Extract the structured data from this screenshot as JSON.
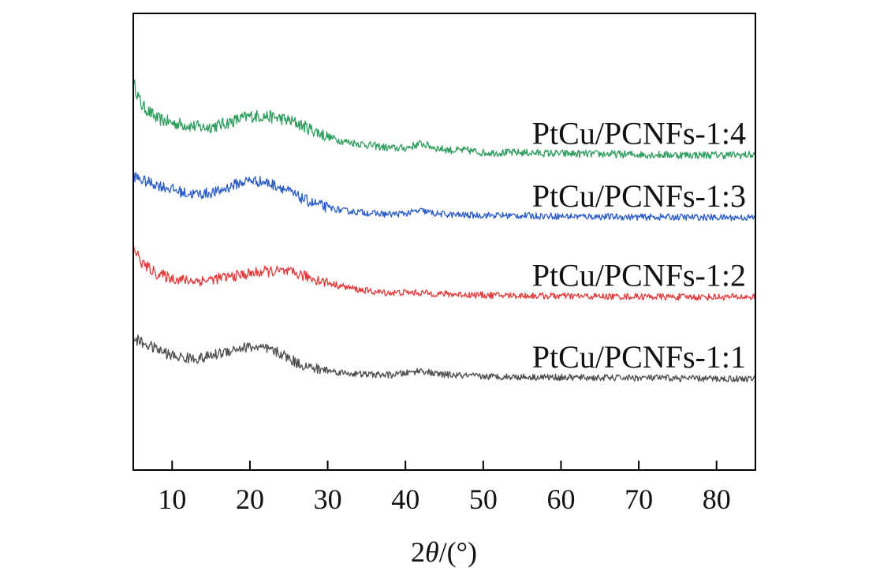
{
  "chart_data": {
    "type": "line",
    "title": "",
    "xlabel_prefix": "2",
    "xlabel_theta": "θ",
    "xlabel_suffix": "/(°)",
    "ylabel": "",
    "xlim": [
      5,
      85
    ],
    "ylim": [
      0,
      100
    ],
    "xticks": [
      10,
      20,
      30,
      40,
      50,
      60,
      70,
      80
    ],
    "xtick_labels": [
      "10",
      "20",
      "30",
      "40",
      "50",
      "60",
      "70",
      "80"
    ],
    "grid": false,
    "legend": "inline-right",
    "series": [
      {
        "name": "PtCu/PCNFs-1:4",
        "color": "#2e9e5e",
        "noise": 1.4,
        "x": [
          5,
          6,
          8,
          10,
          12,
          14,
          16,
          18,
          20,
          22,
          24,
          26,
          28,
          30,
          32,
          34,
          36,
          38,
          40,
          42,
          44,
          46,
          48,
          50,
          55,
          60,
          65,
          70,
          75,
          80,
          85
        ],
        "y": [
          85,
          80,
          77,
          76,
          75.5,
          75,
          75.5,
          76.5,
          77.5,
          77.5,
          77,
          76,
          74.5,
          73,
          72,
          71.5,
          71,
          70.5,
          70.5,
          71.5,
          70.5,
          70,
          70,
          69.5,
          69.5,
          69.3,
          69.2,
          69.1,
          69,
          69,
          69
        ]
      },
      {
        "name": "PtCu/PCNFs-1:3",
        "color": "#2a5cc7",
        "noise": 1.2,
        "x": [
          5,
          6,
          8,
          10,
          12,
          14,
          16,
          18,
          20,
          22,
          24,
          26,
          28,
          30,
          32,
          34,
          36,
          38,
          40,
          42,
          44,
          46,
          48,
          50,
          55,
          60,
          65,
          70,
          75,
          80,
          85
        ],
        "y": [
          64.5,
          63.5,
          62.5,
          61.5,
          60.5,
          60.5,
          61,
          62.5,
          63.5,
          63,
          62,
          60,
          58.5,
          57.5,
          56.8,
          56.5,
          56.2,
          56,
          56.2,
          56.8,
          56.1,
          55.9,
          55.8,
          55.8,
          55.7,
          55.6,
          55.5,
          55.4,
          55.4,
          55.3,
          55.3
        ]
      },
      {
        "name": "PtCu/PCNFs-1:2",
        "color": "#e23a3a",
        "noise": 1.2,
        "x": [
          5,
          6,
          8,
          10,
          12,
          14,
          16,
          18,
          20,
          22,
          24,
          26,
          28,
          30,
          32,
          34,
          36,
          38,
          40,
          42,
          44,
          46,
          48,
          50,
          55,
          60,
          65,
          70,
          75,
          80,
          85
        ],
        "y": [
          49,
          45.5,
          43,
          42,
          41.5,
          41.5,
          42,
          42.5,
          43,
          43.5,
          43.5,
          43,
          42,
          41,
          40.2,
          39.5,
          39,
          38.8,
          38.9,
          38.8,
          38.6,
          38.5,
          38.4,
          38.3,
          38.2,
          38.1,
          38,
          38,
          37.9,
          37.9,
          37.9
        ]
      },
      {
        "name": "PtCu/PCNFs-1:1",
        "color": "#4d4d4d",
        "noise": 1.2,
        "x": [
          5,
          6,
          8,
          10,
          12,
          14,
          16,
          18,
          20,
          22,
          24,
          26,
          28,
          30,
          32,
          34,
          36,
          38,
          40,
          42,
          44,
          46,
          48,
          50,
          55,
          60,
          65,
          70,
          75,
          80,
          85
        ],
        "y": [
          29,
          28,
          26.5,
          25,
          24.5,
          24.5,
          25.5,
          26.5,
          27,
          26.5,
          25.5,
          23.5,
          22.3,
          21.8,
          21.3,
          21,
          20.9,
          20.8,
          21.2,
          21.8,
          21,
          20.8,
          20.6,
          20.5,
          20.4,
          20.3,
          20.2,
          20.2,
          20.1,
          20,
          20
        ]
      }
    ]
  }
}
